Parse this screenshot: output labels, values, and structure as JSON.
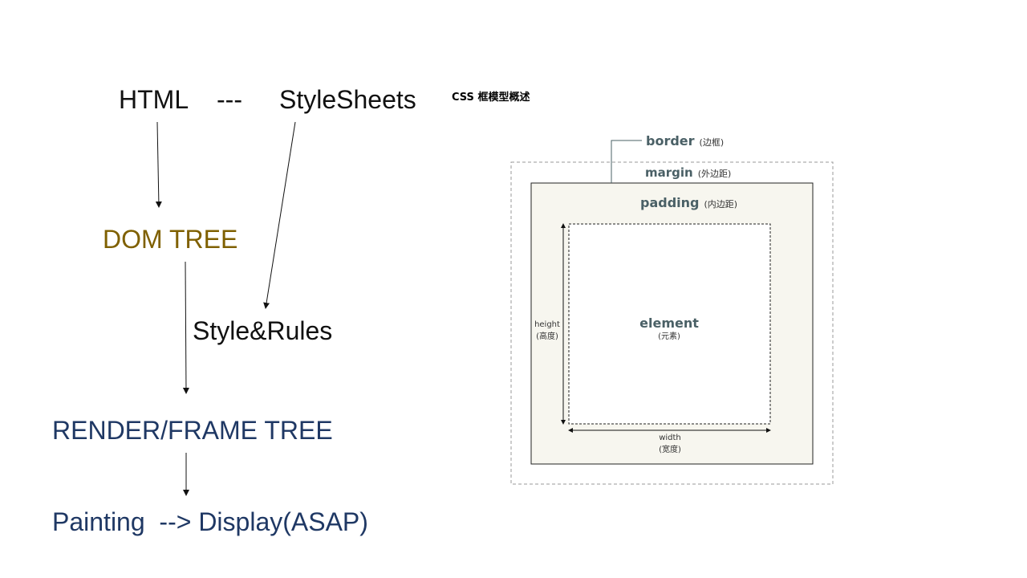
{
  "flow": {
    "html": "HTML",
    "sep": "---",
    "stylesheets": "StyleSheets",
    "dom_tree": "DOM TREE",
    "style_rules": "Style&Rules",
    "render_tree": "RENDER/FRAME TREE",
    "painting": "Painting  --> Display(ASAP)"
  },
  "colors": {
    "text": "#111111",
    "dom_tree": "#7f6000",
    "render": "#1f3864",
    "box_label": "#4a6066",
    "padding_fill": "#f7f6ef"
  },
  "box_model": {
    "title": "CSS 框模型概述",
    "border": {
      "en": "border",
      "cn": "(边框)"
    },
    "margin": {
      "en": "margin",
      "cn": "(外边距)"
    },
    "padding": {
      "en": "padding",
      "cn": "(内边距)"
    },
    "element": {
      "en": "element",
      "cn": "(元素)"
    },
    "height": {
      "en": "height",
      "cn": "(高度)"
    },
    "width": {
      "en": "width",
      "cn": "(宽度)"
    }
  }
}
